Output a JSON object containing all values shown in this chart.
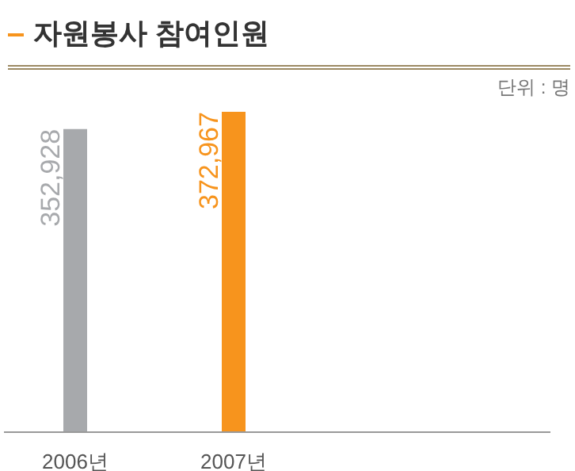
{
  "chart_data": {
    "type": "bar",
    "title": "자원봉사 참여인원",
    "annotations": [
      "단위 : 명"
    ],
    "categories": [
      "2006년",
      "2007년"
    ],
    "values": [
      352928,
      372967
    ],
    "value_labels": [
      "352,928",
      "372,967"
    ],
    "colors": [
      "#a7a9ac",
      "#f7941d"
    ],
    "grid": false
  }
}
